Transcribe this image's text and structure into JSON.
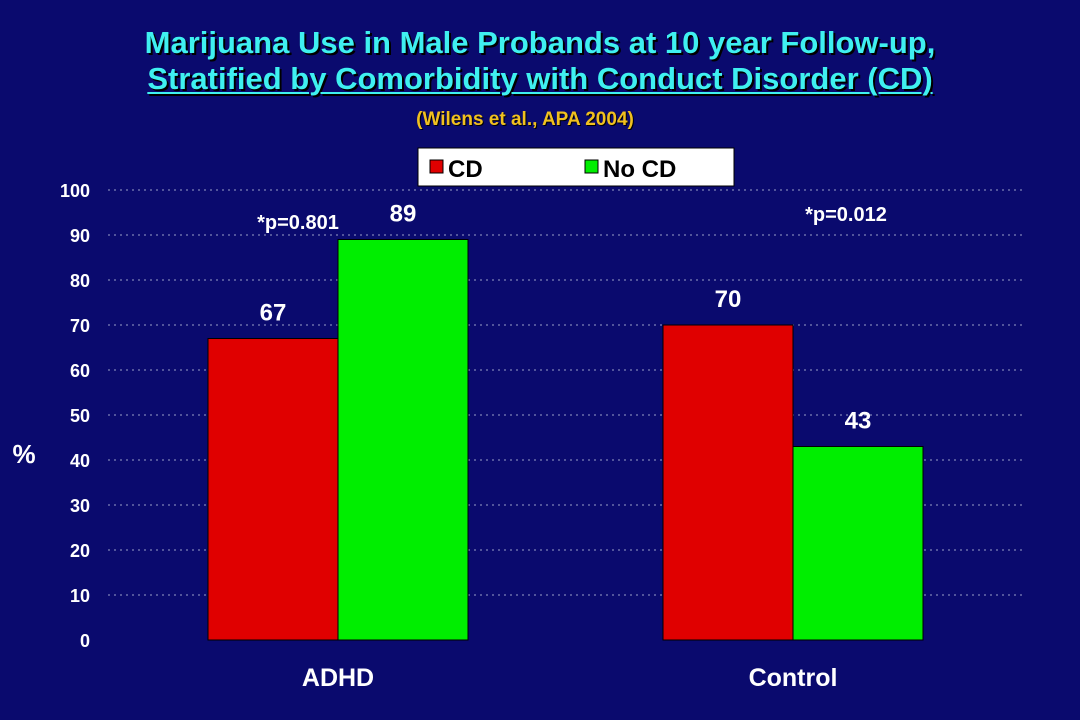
{
  "title_line1": "Marijuana Use in Male Probands at 10 year Follow-up,",
  "title_line2": "Stratified by Comorbidity with Conduct Disorder (CD)",
  "citation": "(Wilens et al., APA 2004)",
  "colors": {
    "background": "#0a0a6e",
    "title": "#3ff0f0",
    "citation": "#f0c020",
    "cd": "#e00000",
    "no_cd": "#00ee00"
  },
  "chart_data": {
    "type": "bar",
    "categories": [
      "ADHD",
      "Control"
    ],
    "series": [
      {
        "name": "CD",
        "values": [
          67,
          70
        ],
        "color": "#e00000"
      },
      {
        "name": "No CD",
        "values": [
          89,
          43
        ],
        "color": "#00ee00"
      }
    ],
    "ylabel": "%",
    "xlabel": "",
    "ylim": [
      0,
      100
    ],
    "yticks": [
      0,
      10,
      20,
      30,
      40,
      50,
      60,
      70,
      80,
      90,
      100
    ],
    "grid": true,
    "legend_position": "top-center",
    "data_labels": [
      [
        "67",
        "89"
      ],
      [
        "70",
        "43"
      ]
    ],
    "annotations": [
      "*p=0.801",
      "*p=0.012"
    ]
  }
}
